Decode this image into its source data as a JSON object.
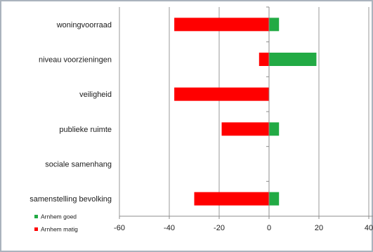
{
  "chart_data": {
    "type": "bar",
    "orientation": "horizontal",
    "stacked": true,
    "categories": [
      "woningvoorraad",
      "niveau voorzieningen",
      "veiligheid",
      "publieke ruimte",
      "sociale samenhang",
      "samenstelling bevolking"
    ],
    "series": [
      {
        "name": "Arnhem goed",
        "color": "#22aa44",
        "values": [
          4,
          19,
          0,
          4,
          0,
          4
        ]
      },
      {
        "name": "Arnhem matig",
        "color": "#ff0000",
        "values": [
          -38,
          -4,
          -38,
          -19,
          0,
          -30
        ]
      }
    ],
    "xlim": [
      -60,
      40
    ],
    "xticks": [
      "-60",
      "-40",
      "-20",
      "0",
      "20",
      "40"
    ],
    "grid": "vertical",
    "legend": "bottom-left"
  }
}
